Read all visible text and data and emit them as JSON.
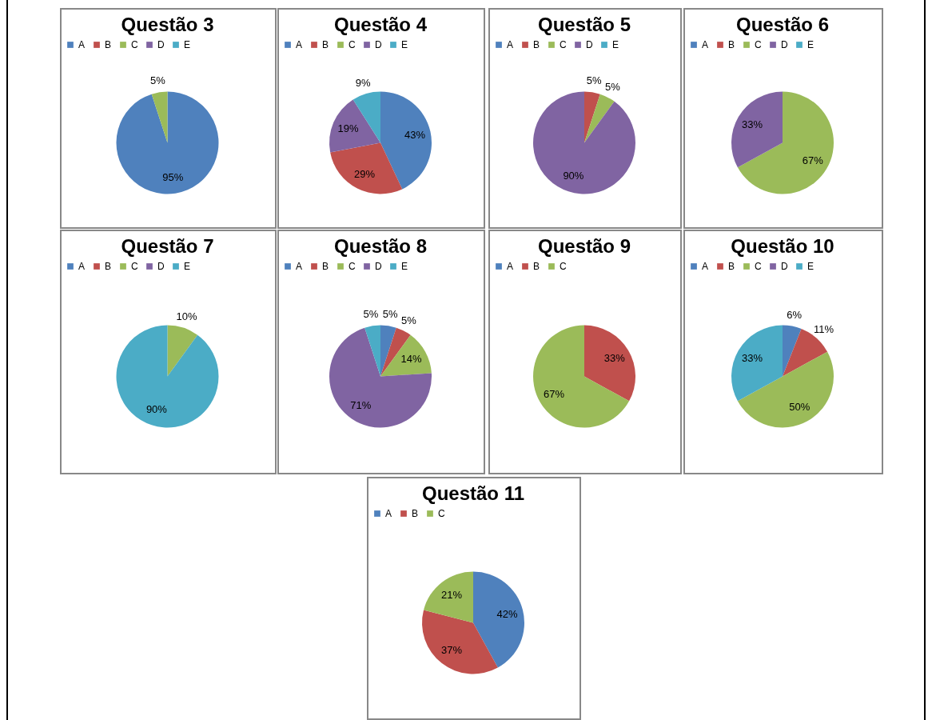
{
  "chart_data": [
    {
      "type": "pie",
      "title": "Questão 3",
      "categories": [
        "A",
        "B",
        "C",
        "D",
        "E"
      ],
      "values": [
        95,
        0,
        5,
        0,
        0
      ],
      "value_labels": [
        "95%",
        null,
        "5%",
        null,
        null
      ],
      "colors": [
        "#4f81bd",
        "#c0504d",
        "#9bbb59",
        "#8064a2",
        "#4bacc6"
      ],
      "legend": "top"
    },
    {
      "type": "pie",
      "title": "Questão 4",
      "categories": [
        "A",
        "B",
        "C",
        "D",
        "E"
      ],
      "values": [
        43,
        29,
        0,
        19,
        9
      ],
      "value_labels": [
        "43%",
        "29%",
        null,
        "19%",
        "9%"
      ],
      "colors": [
        "#4f81bd",
        "#c0504d",
        "#9bbb59",
        "#8064a2",
        "#4bacc6"
      ],
      "legend": "top"
    },
    {
      "type": "pie",
      "title": "Questão 5",
      "categories": [
        "A",
        "B",
        "C",
        "D",
        "E"
      ],
      "values": [
        0,
        5,
        5,
        90,
        0
      ],
      "value_labels": [
        null,
        "5%",
        "5%",
        "90%",
        null
      ],
      "colors": [
        "#4f81bd",
        "#c0504d",
        "#9bbb59",
        "#8064a2",
        "#4bacc6"
      ],
      "legend": "top"
    },
    {
      "type": "pie",
      "title": "Questão 6",
      "categories": [
        "A",
        "B",
        "C",
        "D",
        "E"
      ],
      "values": [
        0,
        0,
        67,
        33,
        0
      ],
      "value_labels": [
        null,
        null,
        "67%",
        "33%",
        null
      ],
      "colors": [
        "#4f81bd",
        "#c0504d",
        "#9bbb59",
        "#8064a2",
        "#4bacc6"
      ],
      "legend": "top"
    },
    {
      "type": "pie",
      "title": "Questão 7",
      "categories": [
        "A",
        "B",
        "C",
        "D",
        "E"
      ],
      "values": [
        0,
        0,
        10,
        0,
        90
      ],
      "value_labels": [
        null,
        null,
        "10%",
        null,
        "90%"
      ],
      "colors": [
        "#4f81bd",
        "#c0504d",
        "#9bbb59",
        "#8064a2",
        "#4bacc6"
      ],
      "legend": "top"
    },
    {
      "type": "pie",
      "title": "Questão 8",
      "categories": [
        "A",
        "B",
        "C",
        "D",
        "E"
      ],
      "values": [
        5,
        5,
        14,
        71,
        5
      ],
      "value_labels": [
        "5%",
        "5%",
        "14%",
        "71%",
        "5%"
      ],
      "colors": [
        "#4f81bd",
        "#c0504d",
        "#9bbb59",
        "#8064a2",
        "#4bacc6"
      ],
      "legend": "top"
    },
    {
      "type": "pie",
      "title": "Questão 9",
      "categories": [
        "A",
        "B",
        "C"
      ],
      "values": [
        0,
        33,
        67
      ],
      "value_labels": [
        null,
        "33%",
        "67%"
      ],
      "colors": [
        "#4f81bd",
        "#c0504d",
        "#9bbb59"
      ],
      "legend": "top"
    },
    {
      "type": "pie",
      "title": "Questão 10",
      "categories": [
        "A",
        "B",
        "C",
        "D",
        "E"
      ],
      "values": [
        6,
        11,
        50,
        0,
        33
      ],
      "value_labels": [
        "6%",
        "11%",
        "50%",
        null,
        "33%"
      ],
      "colors": [
        "#4f81bd",
        "#c0504d",
        "#9bbb59",
        "#8064a2",
        "#4bacc6"
      ],
      "legend": "top"
    },
    {
      "type": "pie",
      "title": "Questão 11",
      "categories": [
        "A",
        "B",
        "C"
      ],
      "values": [
        42,
        37,
        21
      ],
      "value_labels": [
        "42%",
        "37%",
        "21%"
      ],
      "colors": [
        "#4f81bd",
        "#c0504d",
        "#9bbb59"
      ],
      "legend": "top"
    }
  ]
}
